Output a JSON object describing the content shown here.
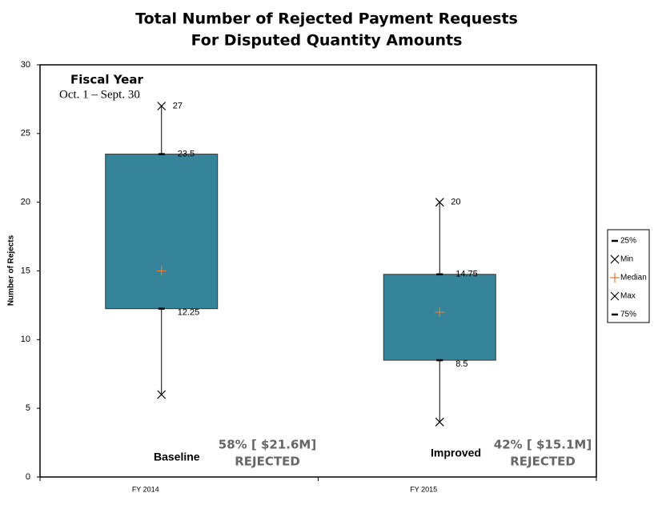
{
  "chart_data": {
    "type": "box",
    "title": "Total Number of Rejected Payment Requests",
    "subtitle": "For Disputed Quantity Amounts",
    "ylabel": "Number of Rejects",
    "categories": [
      "FY 2014",
      "FY 2015"
    ],
    "ylim": [
      0,
      30
    ],
    "yticks": [
      0,
      5,
      10,
      15,
      20,
      25,
      30
    ],
    "box_color": "#36849a",
    "legend": "right",
    "series": [
      {
        "name": "25%",
        "color": "#000000",
        "marker": "dash",
        "show_labels": true,
        "values": [
          12.25,
          8.5
        ]
      },
      {
        "name": "Min",
        "color": "#000000",
        "marker": "x",
        "show_labels": false,
        "values": [
          6,
          4
        ]
      },
      {
        "name": "Median",
        "color": "#e07b39",
        "marker": "plus",
        "show_labels": false,
        "values": [
          15,
          12
        ]
      },
      {
        "name": "Max",
        "color": "#000000",
        "marker": "x",
        "show_labels": true,
        "values": [
          27,
          20
        ]
      },
      {
        "name": "75%",
        "color": "#000000",
        "marker": "dash",
        "show_labels": true,
        "values": [
          23.5,
          14.75
        ]
      }
    ],
    "annotations": [
      "Fiscal Year",
      "Oct. 1 – Sept. 30",
      "Baseline",
      "58% [ $21.6M]",
      "REJECTED",
      "Improved",
      "42% [ $15.1M]",
      "REJECTED"
    ]
  }
}
